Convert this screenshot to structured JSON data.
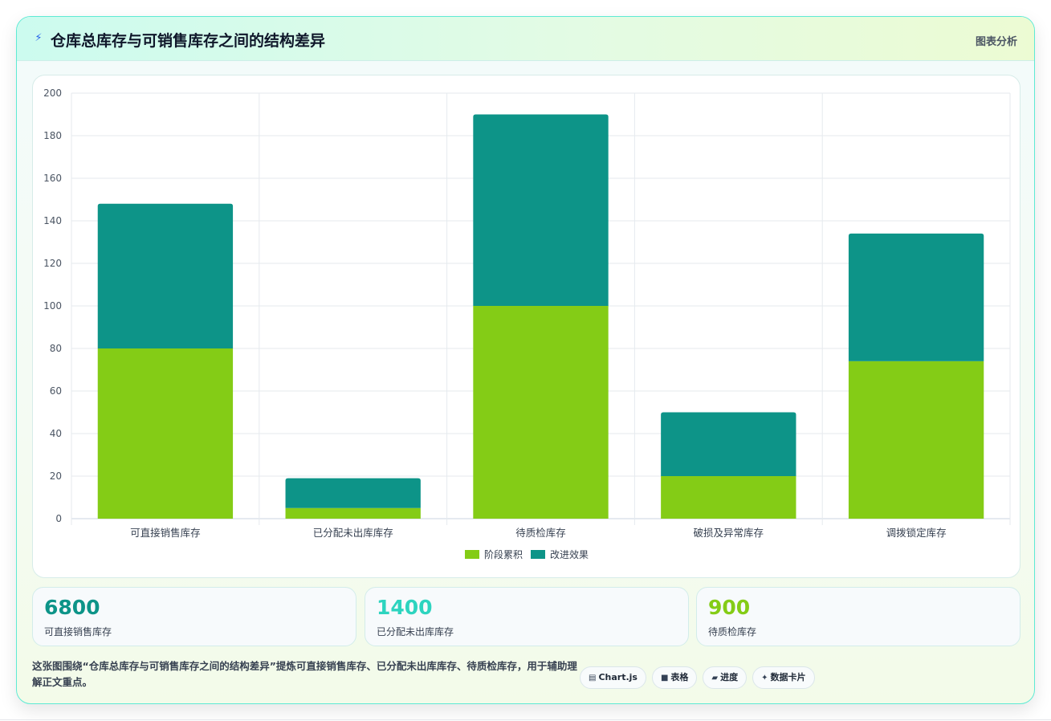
{
  "header": {
    "icon": "lightning-icon",
    "title": "仓库总库存与可销售库存之间的结构差异",
    "tag": "图表分析"
  },
  "chart_data": {
    "type": "bar",
    "stacked": true,
    "title": "",
    "xlabel": "",
    "ylabel": "",
    "categories": [
      "可直接销售库存",
      "已分配未出库库存",
      "待质检库存",
      "破损及异常库存",
      "调拨锁定库存"
    ],
    "series": [
      {
        "name": "阶段累积",
        "color": "#84cc16",
        "values": [
          80,
          5,
          100,
          20,
          74
        ]
      },
      {
        "name": "改进效果",
        "color": "#0d9488",
        "values": [
          68,
          14,
          90,
          30,
          60
        ]
      }
    ],
    "ylim": [
      0,
      200
    ],
    "yticks": [
      0,
      20,
      40,
      60,
      80,
      100,
      120,
      140,
      160,
      180,
      200
    ],
    "grid": true,
    "legend": "bottom-center"
  },
  "stats": [
    {
      "value": "6800",
      "label": "可直接销售库存",
      "color": "#0d9488"
    },
    {
      "value": "1400",
      "label": "已分配未出库库存",
      "color": "#2dd4bf"
    },
    {
      "value": "900",
      "label": "待质检库存",
      "color": "#84cc16"
    }
  ],
  "description": "这张图围绕“仓库总库存与可销售库存之间的结构差异”提炼可直接销售库存、已分配未出库库存、待质检库存，用于辅助理解正文重点。",
  "chips": [
    {
      "icon": "chart-icon",
      "glyph": "▤",
      "label": "Chart.js"
    },
    {
      "icon": "table-icon",
      "glyph": "■",
      "label": "表格"
    },
    {
      "icon": "progress-icon",
      "glyph": "▰",
      "label": "进度"
    },
    {
      "icon": "sparkle-icon",
      "glyph": "✦",
      "label": "数据卡片"
    }
  ]
}
